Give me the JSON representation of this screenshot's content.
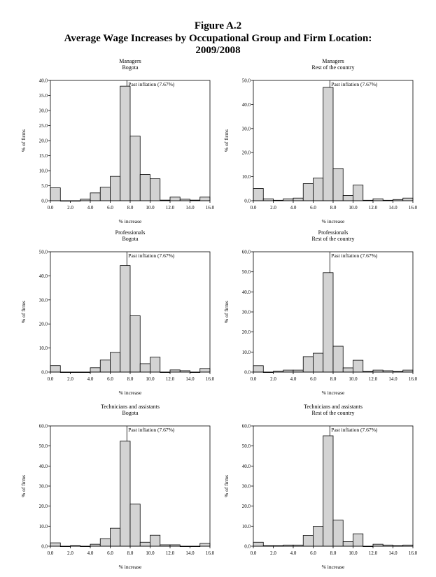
{
  "figure": {
    "label": "Figure A.2",
    "title_line1": "Average Wage Increases by Occupational Group and Firm Location:",
    "title_line2": "2009/2008"
  },
  "chart_data": [
    {
      "type": "bar",
      "title": "Managers",
      "subtitle": "Bogota",
      "xlabel": "% increase",
      "ylabel": "% of firms",
      "xlim": [
        0,
        16
      ],
      "ylim": [
        0,
        40
      ],
      "yticks": [
        "0.0",
        "5.0",
        "10.0",
        "15.0",
        "20.0",
        "25.0",
        "30.0",
        "35.0",
        "40.0"
      ],
      "xticks": [
        "0.0",
        "2.0",
        "4.0",
        "6.0",
        "8.0",
        "10.0",
        "12.0",
        "14.0",
        "16.0"
      ],
      "bin_width": 1,
      "values": [
        4.3,
        0,
        0,
        0.5,
        2.6,
        4.5,
        8.1,
        38.1,
        21.5,
        8.7,
        7.3,
        0.2,
        1.2,
        0.5,
        0.2,
        1.2
      ],
      "reference_line": {
        "x": 7.67,
        "label": "Past inflation (7.67%)"
      }
    },
    {
      "type": "bar",
      "title": "Managers",
      "subtitle": "Rest of the country",
      "xlabel": "% increase",
      "ylabel": "% of firms",
      "xlim": [
        0,
        16
      ],
      "ylim": [
        0,
        50
      ],
      "yticks": [
        "0.0",
        "10.0",
        "20.0",
        "30.0",
        "40.0",
        "50.0"
      ],
      "xticks": [
        "0.0",
        "2.0",
        "4.0",
        "6.0",
        "8.0",
        "10.0",
        "12.0",
        "14.0",
        "16.0"
      ],
      "bin_width": 1,
      "values": [
        5.1,
        0.8,
        0.2,
        0.8,
        1.1,
        7.1,
        9.4,
        47.1,
        13.4,
        2.2,
        6.5,
        0.2,
        0.8,
        0.2,
        0.5,
        1.1
      ],
      "reference_line": {
        "x": 7.67,
        "label": "Past inflation (7.67%)"
      }
    },
    {
      "type": "bar",
      "title": "Professionals",
      "subtitle": "Bogota",
      "xlabel": "% increase",
      "ylabel": "% of firms",
      "xlim": [
        0,
        16
      ],
      "ylim": [
        0,
        50
      ],
      "yticks": [
        "0.0",
        "10.0",
        "20.0",
        "30.0",
        "40.0",
        "50.0"
      ],
      "xticks": [
        "0.0",
        "2.0",
        "4.0",
        "6.0",
        "8.0",
        "10.0",
        "12.0",
        "14.0",
        "16.0"
      ],
      "bin_width": 1,
      "values": [
        2.7,
        0,
        0,
        0,
        1.8,
        5.0,
        8.2,
        44.3,
        23.4,
        3.5,
        6.2,
        0,
        0.9,
        0.6,
        0,
        1.5
      ],
      "reference_line": {
        "x": 7.67,
        "label": "Past inflation (7.67%)"
      }
    },
    {
      "type": "bar",
      "title": "Professionals",
      "subtitle": "Rest of the country",
      "xlabel": "% increase",
      "ylabel": "% of firms",
      "xlim": [
        0,
        16
      ],
      "ylim": [
        0,
        60
      ],
      "yticks": [
        "0.0",
        "10.0",
        "20.0",
        "30.0",
        "40.0",
        "50.0",
        "60.0"
      ],
      "xticks": [
        "0.0",
        "2.0",
        "4.0",
        "6.0",
        "8.0",
        "10.0",
        "12.0",
        "14.0",
        "16.0"
      ],
      "bin_width": 1,
      "values": [
        3.2,
        0,
        0.4,
        1.0,
        1.0,
        7.7,
        9.4,
        49.6,
        12.9,
        2.1,
        5.9,
        0.3,
        1.0,
        0.7,
        0.3,
        1.0
      ],
      "reference_line": {
        "x": 7.67,
        "label": "Past inflation (7.67%)"
      }
    },
    {
      "type": "bar",
      "title": "Technicians and assistants",
      "subtitle": "Bogota",
      "xlabel": "% increase",
      "ylabel": "% of firms",
      "xlim": [
        0,
        16
      ],
      "ylim": [
        0,
        60
      ],
      "yticks": [
        "0.0",
        "10.0",
        "20.0",
        "30.0",
        "40.0",
        "50.0",
        "60.0"
      ],
      "xticks": [
        "0.0",
        "2.0",
        "4.0",
        "6.0",
        "8.0",
        "10.0",
        "12.0",
        "14.0",
        "16.0"
      ],
      "bin_width": 1,
      "values": [
        1.7,
        0,
        0.3,
        0,
        1.0,
        3.8,
        9.0,
        52.4,
        21.0,
        2.0,
        5.5,
        0.7,
        0.7,
        0,
        0,
        1.4
      ],
      "reference_line": {
        "x": 7.67,
        "label": "Past inflation (7.67%)"
      }
    },
    {
      "type": "bar",
      "title": "Technicians and assistants",
      "subtitle": "Rest of the country",
      "xlabel": "% increase",
      "ylabel": "% of firms",
      "xlim": [
        0,
        16
      ],
      "ylim": [
        0,
        60
      ],
      "yticks": [
        "0.0",
        "10.0",
        "20.0",
        "30.0",
        "40.0",
        "50.0",
        "60.0"
      ],
      "xticks": [
        "0.0",
        "2.0",
        "4.0",
        "6.0",
        "8.0",
        "10.0",
        "12.0",
        "14.0",
        "16.0"
      ],
      "bin_width": 1,
      "values": [
        2.0,
        0.3,
        0.3,
        0.6,
        0.6,
        5.4,
        9.9,
        55.1,
        13.0,
        2.3,
        6.2,
        0,
        1.0,
        0.6,
        0.3,
        0.6
      ],
      "reference_line": {
        "x": 7.67,
        "label": "Past inflation (7.67%)"
      }
    }
  ]
}
